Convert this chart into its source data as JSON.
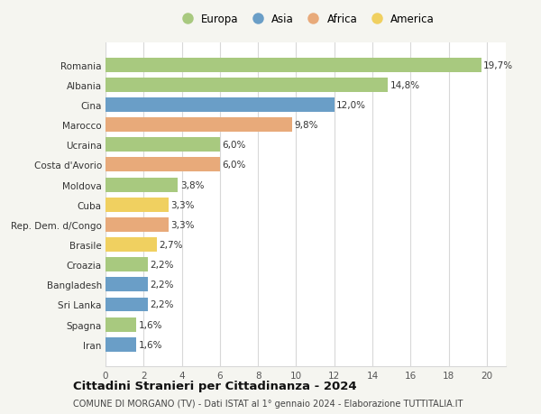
{
  "countries": [
    "Romania",
    "Albania",
    "Cina",
    "Marocco",
    "Ucraina",
    "Costa d'Avorio",
    "Moldova",
    "Cuba",
    "Rep. Dem. d/Congo",
    "Brasile",
    "Croazia",
    "Bangladesh",
    "Sri Lanka",
    "Spagna",
    "Iran"
  ],
  "values": [
    19.7,
    14.8,
    12.0,
    9.8,
    6.0,
    6.0,
    3.8,
    3.3,
    3.3,
    2.7,
    2.2,
    2.2,
    2.2,
    1.6,
    1.6
  ],
  "labels": [
    "19,7%",
    "14,8%",
    "12,0%",
    "9,8%",
    "6,0%",
    "6,0%",
    "3,8%",
    "3,3%",
    "3,3%",
    "2,7%",
    "2,2%",
    "2,2%",
    "2,2%",
    "1,6%",
    "1,6%"
  ],
  "continents": [
    "Europa",
    "Europa",
    "Asia",
    "Africa",
    "Europa",
    "Africa",
    "Europa",
    "America",
    "Africa",
    "America",
    "Europa",
    "Asia",
    "Asia",
    "Europa",
    "Asia"
  ],
  "colors": {
    "Europa": "#a8c97f",
    "Asia": "#6a9ec7",
    "Africa": "#e8aa7a",
    "America": "#f0d060"
  },
  "legend_order": [
    "Europa",
    "Asia",
    "Africa",
    "America"
  ],
  "title": "Cittadini Stranieri per Cittadinanza - 2024",
  "subtitle": "COMUNE DI MORGANO (TV) - Dati ISTAT al 1° gennaio 2024 - Elaborazione TUTTITALIA.IT",
  "xlim": [
    0,
    21
  ],
  "xticks": [
    0,
    2,
    4,
    6,
    8,
    10,
    12,
    14,
    16,
    18,
    20
  ],
  "bg_color": "#f5f5f0",
  "bar_bg_color": "#ffffff",
  "grid_color": "#d8d8d8",
  "bar_height": 0.72,
  "label_fontsize": 7.5,
  "ytick_fontsize": 7.5,
  "xtick_fontsize": 7.5,
  "legend_fontsize": 8.5,
  "title_fontsize": 9.5,
  "subtitle_fontsize": 7.0
}
